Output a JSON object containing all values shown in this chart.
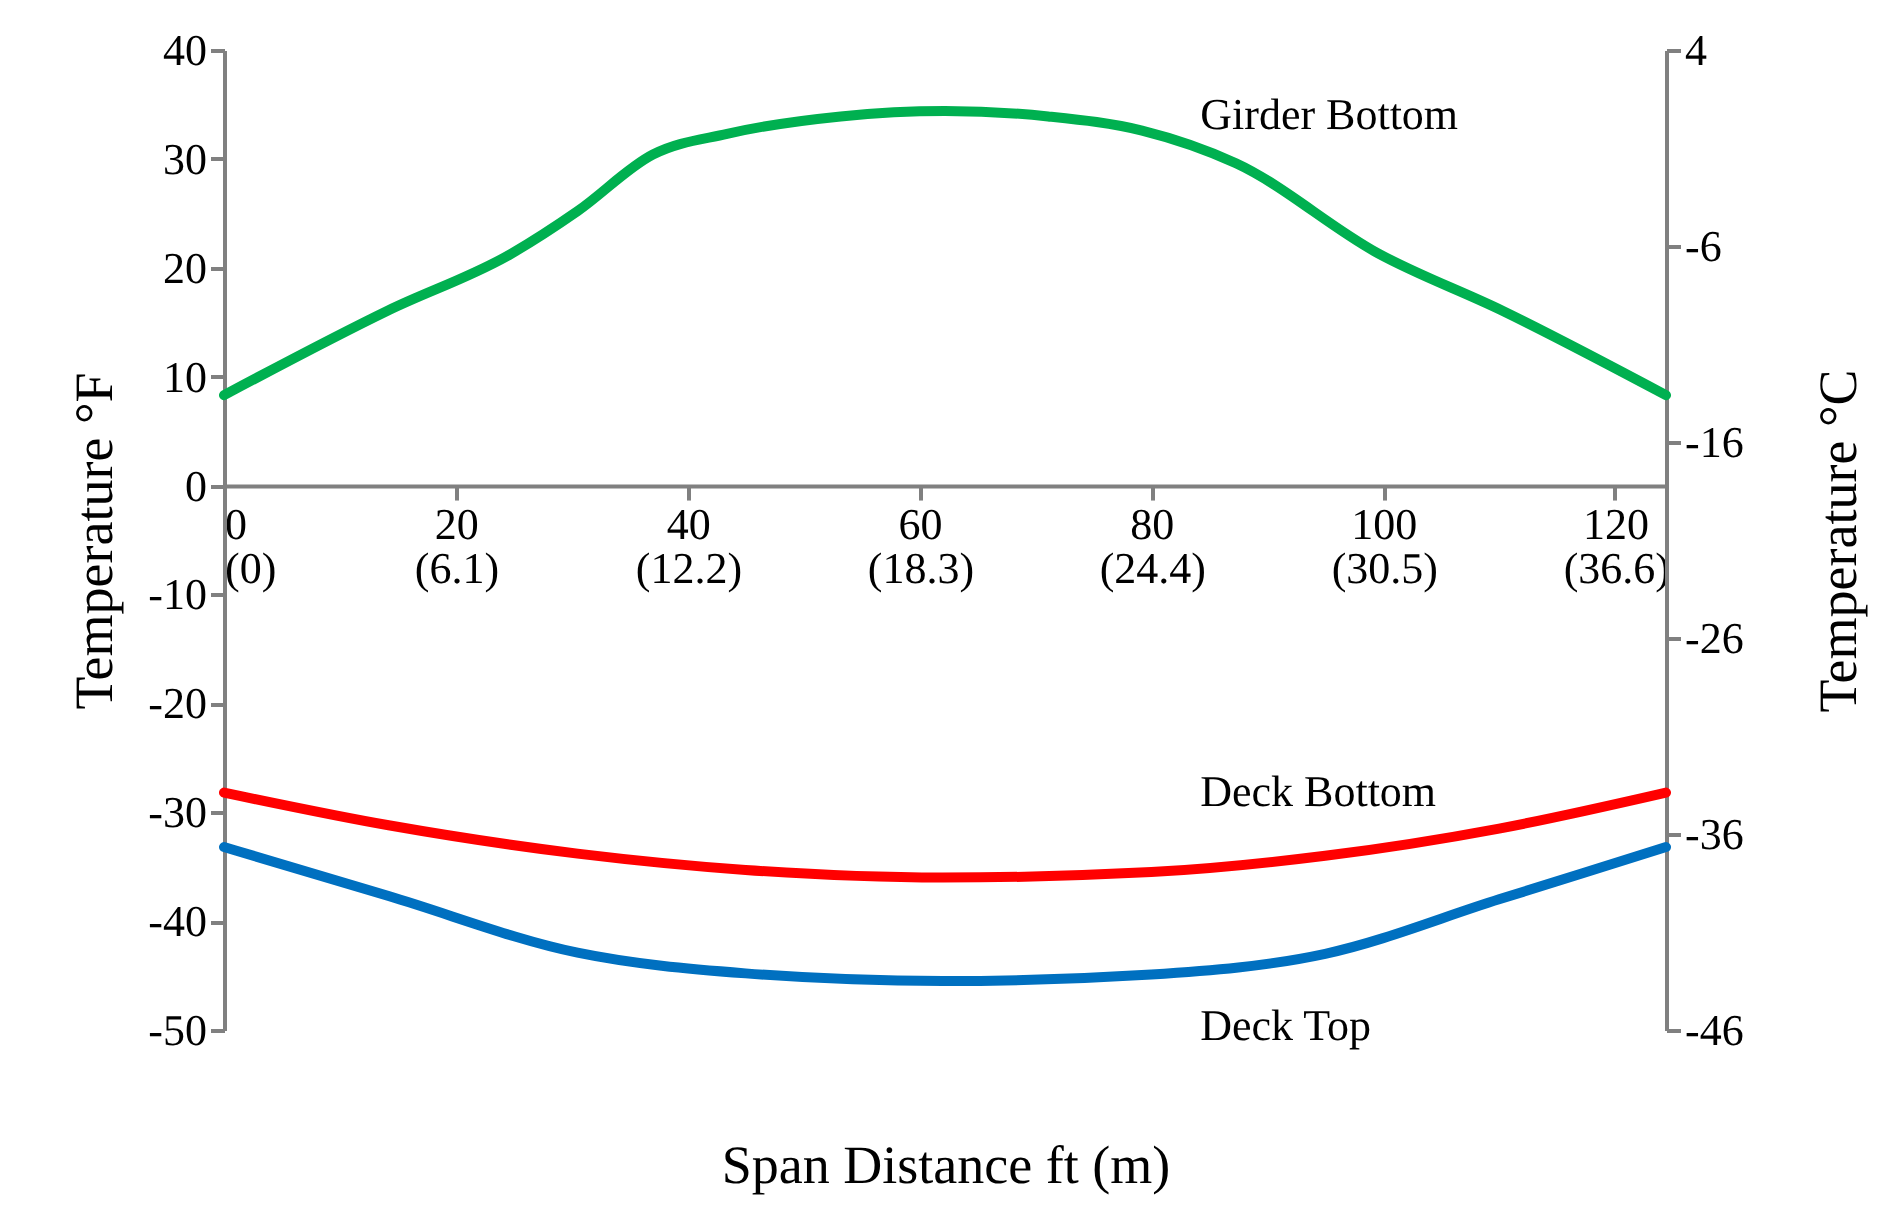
{
  "chart_data": {
    "type": "line",
    "xlabel": "Span Distance ft (m)",
    "ylabel": "Temperature °F",
    "y2label": "Temperature °C",
    "xlim": [
      0,
      124.4
    ],
    "xticks": [
      0,
      20,
      40,
      60,
      80,
      100,
      120
    ],
    "x2lim": [
      0,
      37.92
    ],
    "x2ticks": [
      {
        "value": 0,
        "label": "(0)"
      },
      {
        "value": 6.1,
        "label": "(6.1)"
      },
      {
        "value": 12.2,
        "label": "(12.2)"
      },
      {
        "value": 18.3,
        "label": "(18.3)"
      },
      {
        "value": 24.4,
        "label": "(24.4)"
      },
      {
        "value": 30.5,
        "label": "(30.5)"
      },
      {
        "value": 36.6,
        "label": "(36.6)"
      }
    ],
    "ylim": [
      -50,
      40
    ],
    "yticks": [
      -50,
      -40,
      -30,
      -20,
      -10,
      0,
      10,
      20,
      30,
      40
    ],
    "y2lim": [
      -46,
      4
    ],
    "y2ticks": [
      -46,
      -36,
      -26,
      -16,
      -6,
      4
    ],
    "grid": false,
    "legend": false,
    "line_style": "solid",
    "marker": "none",
    "series": [
      {
        "name": "Girder Bottom",
        "color": "#00b050",
        "x": [
          0,
          14.2,
          24.8,
          30.5,
          37,
          43.4,
          53.2,
          62.2,
          71.1,
          79.2,
          87.3,
          99.6,
          110.2,
          124.4
        ],
        "values": [
          8.3,
          16.1,
          21.3,
          25.2,
          30.4,
          32.3,
          33.9,
          34.4,
          33.9,
          32.6,
          29.6,
          21.3,
          16.1,
          8.3
        ]
      },
      {
        "name": "Deck Bottom",
        "color": "#ff0000",
        "x": [
          0,
          14.2,
          30.5,
          45,
          62,
          80,
          95,
          110,
          124.4
        ],
        "values": [
          -28.2,
          -31.2,
          -33.8,
          -35.3,
          -36.0,
          -35.5,
          -34.0,
          -31.5,
          -28.2
        ]
      },
      {
        "name": "Deck Top",
        "color": "#0070c0",
        "x": [
          0,
          14.2,
          30.5,
          45,
          62,
          80,
          95,
          110,
          124.4
        ],
        "values": [
          -33.2,
          -37.7,
          -42.9,
          -44.8,
          -45.5,
          -44.9,
          -43.0,
          -38.0,
          -33.2
        ]
      }
    ]
  }
}
